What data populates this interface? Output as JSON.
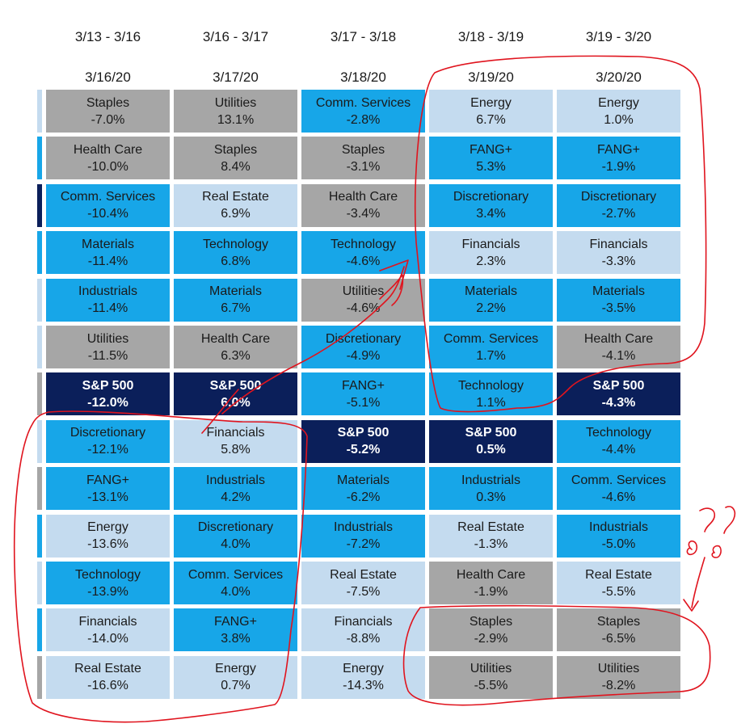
{
  "colors": {
    "gray": "#a6a6a6",
    "light": "#c4dbef",
    "cyan": "#17a6e8",
    "navy": "#0b1f5a",
    "annotation": "#e0141e"
  },
  "headers": [
    {
      "range": "3/13 - 3/16",
      "date": "3/16/20"
    },
    {
      "range": "3/16 - 3/17",
      "date": "3/17/20"
    },
    {
      "range": "3/17 - 3/18",
      "date": "3/18/20"
    },
    {
      "range": "3/18 - 3/19",
      "date": "3/19/20"
    },
    {
      "range": "3/19 - 3/20",
      "date": "3/20/20"
    }
  ],
  "stripes": [
    "light",
    "cyan",
    "navy",
    "cyan",
    "light",
    "light",
    "gray",
    "light",
    "gray",
    "cyan",
    "light",
    "cyan",
    "gray"
  ],
  "chart_data": {
    "type": "table",
    "columns": [
      {
        "date": "3/16/20",
        "cells": [
          {
            "label": "Staples",
            "value": "-7.0%",
            "color": "gray"
          },
          {
            "label": "Health Care",
            "value": "-10.0%",
            "color": "gray"
          },
          {
            "label": "Comm. Services",
            "value": "-10.4%",
            "color": "cyan"
          },
          {
            "label": "Materials",
            "value": "-11.4%",
            "color": "cyan"
          },
          {
            "label": "Industrials",
            "value": "-11.4%",
            "color": "cyan"
          },
          {
            "label": "Utilities",
            "value": "-11.5%",
            "color": "gray"
          },
          {
            "label": "S&P 500",
            "value": "-12.0%",
            "color": "navy"
          },
          {
            "label": "Discretionary",
            "value": "-12.1%",
            "color": "cyan"
          },
          {
            "label": "FANG+",
            "value": "-13.1%",
            "color": "cyan"
          },
          {
            "label": "Energy",
            "value": "-13.6%",
            "color": "light"
          },
          {
            "label": "Technology",
            "value": "-13.9%",
            "color": "cyan"
          },
          {
            "label": "Financials",
            "value": "-14.0%",
            "color": "light"
          },
          {
            "label": "Real Estate",
            "value": "-16.6%",
            "color": "light"
          }
        ]
      },
      {
        "date": "3/17/20",
        "cells": [
          {
            "label": "Utilities",
            "value": "13.1%",
            "color": "gray"
          },
          {
            "label": "Staples",
            "value": "8.4%",
            "color": "gray"
          },
          {
            "label": "Real Estate",
            "value": "6.9%",
            "color": "light"
          },
          {
            "label": "Technology",
            "value": "6.8%",
            "color": "cyan"
          },
          {
            "label": "Materials",
            "value": "6.7%",
            "color": "cyan"
          },
          {
            "label": "Health Care",
            "value": "6.3%",
            "color": "gray"
          },
          {
            "label": "S&P 500",
            "value": "6.0%",
            "color": "navy"
          },
          {
            "label": "Financials",
            "value": "5.8%",
            "color": "light"
          },
          {
            "label": "Industrials",
            "value": "4.2%",
            "color": "cyan"
          },
          {
            "label": "Discretionary",
            "value": "4.0%",
            "color": "cyan"
          },
          {
            "label": "Comm. Services",
            "value": "4.0%",
            "color": "cyan"
          },
          {
            "label": "FANG+",
            "value": "3.8%",
            "color": "cyan"
          },
          {
            "label": "Energy",
            "value": "0.7%",
            "color": "light"
          }
        ]
      },
      {
        "date": "3/18/20",
        "cells": [
          {
            "label": "Comm. Services",
            "value": "-2.8%",
            "color": "cyan"
          },
          {
            "label": "Staples",
            "value": "-3.1%",
            "color": "gray"
          },
          {
            "label": "Health Care",
            "value": "-3.4%",
            "color": "gray"
          },
          {
            "label": "Technology",
            "value": "-4.6%",
            "color": "cyan"
          },
          {
            "label": "Utilities",
            "value": "-4.6%",
            "color": "gray"
          },
          {
            "label": "Discretionary",
            "value": "-4.9%",
            "color": "cyan"
          },
          {
            "label": "FANG+",
            "value": "-5.1%",
            "color": "cyan"
          },
          {
            "label": "S&P 500",
            "value": "-5.2%",
            "color": "navy"
          },
          {
            "label": "Materials",
            "value": "-6.2%",
            "color": "cyan"
          },
          {
            "label": "Industrials",
            "value": "-7.2%",
            "color": "cyan"
          },
          {
            "label": "Real Estate",
            "value": "-7.5%",
            "color": "light"
          },
          {
            "label": "Financials",
            "value": "-8.8%",
            "color": "light"
          },
          {
            "label": "Energy",
            "value": "-14.3%",
            "color": "light"
          }
        ]
      },
      {
        "date": "3/19/20",
        "cells": [
          {
            "label": "Energy",
            "value": "6.7%",
            "color": "light"
          },
          {
            "label": "FANG+",
            "value": "5.3%",
            "color": "cyan"
          },
          {
            "label": "Discretionary",
            "value": "3.4%",
            "color": "cyan"
          },
          {
            "label": "Financials",
            "value": "2.3%",
            "color": "light"
          },
          {
            "label": "Materials",
            "value": "2.2%",
            "color": "cyan"
          },
          {
            "label": "Comm. Services",
            "value": "1.7%",
            "color": "cyan"
          },
          {
            "label": "Technology",
            "value": "1.1%",
            "color": "cyan"
          },
          {
            "label": "S&P 500",
            "value": "0.5%",
            "color": "navy"
          },
          {
            "label": "Industrials",
            "value": "0.3%",
            "color": "cyan"
          },
          {
            "label": "Real Estate",
            "value": "-1.3%",
            "color": "light"
          },
          {
            "label": "Health Care",
            "value": "-1.9%",
            "color": "gray"
          },
          {
            "label": "Staples",
            "value": "-2.9%",
            "color": "gray"
          },
          {
            "label": "Utilities",
            "value": "-5.5%",
            "color": "gray"
          }
        ]
      },
      {
        "date": "3/20/20",
        "cells": [
          {
            "label": "Energy",
            "value": "1.0%",
            "color": "light"
          },
          {
            "label": "FANG+",
            "value": "-1.9%",
            "color": "cyan"
          },
          {
            "label": "Discretionary",
            "value": "-2.7%",
            "color": "cyan"
          },
          {
            "label": "Financials",
            "value": "-3.3%",
            "color": "light"
          },
          {
            "label": "Materials",
            "value": "-3.5%",
            "color": "cyan"
          },
          {
            "label": "Health Care",
            "value": "-4.1%",
            "color": "gray"
          },
          {
            "label": "S&P 500",
            "value": "-4.3%",
            "color": "navy"
          },
          {
            "label": "Technology",
            "value": "-4.4%",
            "color": "cyan"
          },
          {
            "label": "Comm. Services",
            "value": "-4.6%",
            "color": "cyan"
          },
          {
            "label": "Industrials",
            "value": "-5.0%",
            "color": "cyan"
          },
          {
            "label": "Real Estate",
            "value": "-5.5%",
            "color": "light"
          },
          {
            "label": "Staples",
            "value": "-6.5%",
            "color": "gray"
          },
          {
            "label": "Utilities",
            "value": "-8.2%",
            "color": "gray"
          }
        ]
      }
    ]
  }
}
